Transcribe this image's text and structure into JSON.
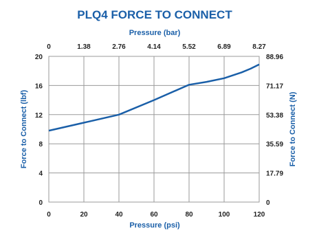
{
  "chart_data": {
    "type": "line",
    "title": "PLQ4 FORCE TO CONNECT",
    "xlabel": "Pressure (psi)",
    "ylabel": "Force to Connect (lbf)",
    "x2label": "Pressure (bar)",
    "y2label": "Force to Connect (N)",
    "xlim": [
      0,
      120
    ],
    "ylim": [
      0,
      20
    ],
    "x_ticks": [
      "0",
      "20",
      "40",
      "60",
      "80",
      "100",
      "120"
    ],
    "y_ticks": [
      "0",
      "4",
      "8",
      "12",
      "16",
      "20"
    ],
    "x2_ticks": [
      "0",
      "1.38",
      "2.76",
      "4.14",
      "5.52",
      "6.89",
      "8.27"
    ],
    "y2_ticks": [
      "0",
      "17.79",
      "35.59",
      "53.38",
      "71.17",
      "88.96"
    ],
    "grid": true,
    "series": [
      {
        "x": [
          0,
          20,
          40,
          60,
          80,
          90,
          100,
          110,
          115,
          120
        ],
        "y": [
          9.8,
          10.9,
          12.0,
          14.0,
          16.1,
          16.5,
          17.0,
          17.8,
          18.3,
          18.9
        ]
      }
    ],
    "colors": {
      "series": "#1a5fa8",
      "grid": "#9a9a9a",
      "title": "#1a5fa8"
    }
  }
}
